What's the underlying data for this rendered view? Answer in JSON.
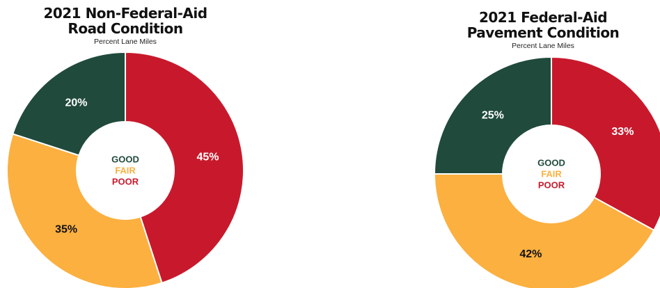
{
  "colors": {
    "good": "#204a3c",
    "fair": "#fbb040",
    "poor": "#c8192c",
    "good_label": "#ffffff",
    "fair_label": "#111111",
    "poor_label": "#ffffff"
  },
  "chart_data": [
    {
      "type": "pie",
      "variant": "donut",
      "title": "2021 Non-Federal-Aid Road Condition",
      "title_lines": [
        "2021 Non-Federal-Aid",
        "Road Condition"
      ],
      "subtitle": "Percent Lane Miles",
      "categories": [
        "POOR",
        "FAIR",
        "GOOD"
      ],
      "values": [
        45,
        35,
        20
      ],
      "value_labels": [
        "45%",
        "35%",
        "20%"
      ],
      "legend": [
        "GOOD",
        "FAIR",
        "POOR"
      ],
      "legend_placement": "center"
    },
    {
      "type": "pie",
      "variant": "donut",
      "title": "2021 Federal-Aid Pavement Condition",
      "title_lines": [
        "2021 Federal-Aid",
        "Pavement Condition"
      ],
      "subtitle": "Percent Lane Miles",
      "categories": [
        "POOR",
        "FAIR",
        "GOOD"
      ],
      "values": [
        33,
        42,
        25
      ],
      "value_labels": [
        "33%",
        "42%",
        "25%"
      ],
      "legend": [
        "GOOD",
        "FAIR",
        "POOR"
      ],
      "legend_placement": "center"
    }
  ]
}
